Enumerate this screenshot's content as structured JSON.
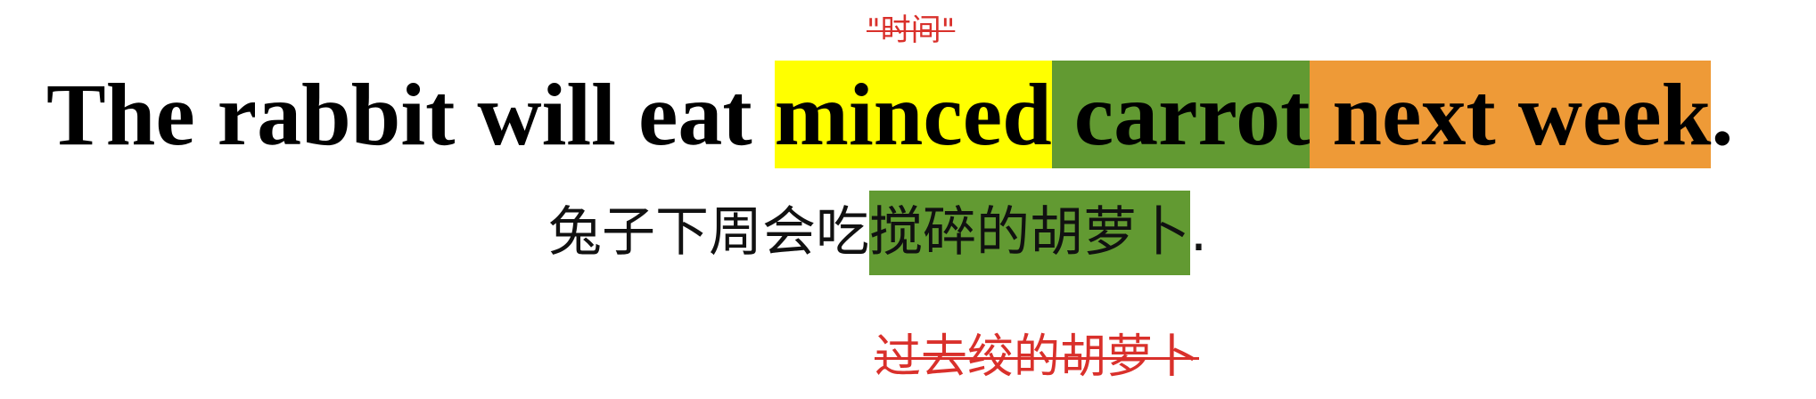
{
  "annotation": "\"时间\"",
  "sentence": {
    "segments": [
      "The rabbit will eat ",
      "minced",
      " carrot",
      " next week",
      "."
    ]
  },
  "translation": {
    "segments": [
      "兔子下周会吃",
      "搅碎的胡萝卜",
      "."
    ]
  },
  "correction": "过去绞的胡萝卜"
}
